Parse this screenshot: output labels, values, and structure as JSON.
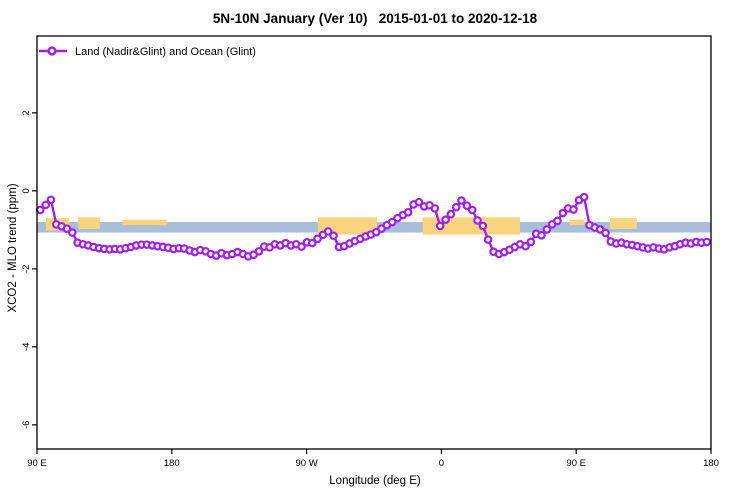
{
  "title": "5N-10N January (Ver 10)   2015-01-01 to 2020-12-18",
  "legend": {
    "label": "Land (Nadir&Glint) and Ocean (Glint)"
  },
  "colors": {
    "series_purple": "#A020F0",
    "ocean_band_blue": "#A9BEDB",
    "land_patch_orange": "#F9D37E",
    "axis_black": "#000000"
  },
  "chart_data": {
    "type": "line",
    "title": "5N-10N January (Ver 10)   2015-01-01 to 2020-12-18",
    "xlabel": "Longitude (deg E)",
    "ylabel": "XCO2 - MLO trend (ppm)",
    "xlim": [
      90,
      540
    ],
    "ylim": [
      -6.62,
      3.97
    ],
    "grid": false,
    "legend_position": "top-left",
    "x_ticks": [
      {
        "value": 90,
        "label": "90 E"
      },
      {
        "value": 180,
        "label": "180"
      },
      {
        "value": 270,
        "label": "90 W"
      },
      {
        "value": 360,
        "label": "0"
      },
      {
        "value": 450,
        "label": "90 E"
      },
      {
        "value": 540,
        "label": "180"
      }
    ],
    "y_ticks": [
      {
        "value": 2,
        "label": "2"
      },
      {
        "value": 0,
        "label": "0"
      },
      {
        "value": -2,
        "label": "-2"
      },
      {
        "value": -4,
        "label": "-4"
      },
      {
        "value": -6,
        "label": "-6"
      }
    ],
    "ocean_band": {
      "from_lon": 90,
      "to_lon": 540,
      "top": -0.8,
      "bottom": -1.07
    },
    "land_patches": [
      {
        "from_lon": 96.0,
        "to_lon": 111.5,
        "top": -0.7,
        "bottom": -1.02
      },
      {
        "from_lon": 117.5,
        "to_lon": 132.0,
        "top": -0.68,
        "bottom": -0.98
      },
      {
        "from_lon": 147.0,
        "to_lon": 177.0,
        "top": -0.74,
        "bottom": -0.88
      },
      {
        "from_lon": 277.5,
        "to_lon": 317.0,
        "top": -0.68,
        "bottom": -1.12
      },
      {
        "from_lon": 347.5,
        "to_lon": 412.5,
        "top": -0.68,
        "bottom": -1.12
      },
      {
        "from_lon": 445.5,
        "to_lon": 455.5,
        "top": -0.74,
        "bottom": -0.88
      },
      {
        "from_lon": 472.5,
        "to_lon": 490.5,
        "top": -0.7,
        "bottom": -0.98
      }
    ],
    "series": [
      {
        "name": "Land (Nadir&Glint) and Ocean (Glint)",
        "color": "#A020F0",
        "marker": "open-circle",
        "points": [
          [
            92.2,
            -0.49
          ],
          [
            95.8,
            -0.36
          ],
          [
            99.3,
            -0.23
          ],
          [
            102.9,
            -0.86
          ],
          [
            106.4,
            -0.91
          ],
          [
            110.0,
            -0.97
          ],
          [
            113.6,
            -1.07
          ],
          [
            117.1,
            -1.33
          ],
          [
            120.7,
            -1.37
          ],
          [
            124.2,
            -1.4
          ],
          [
            127.8,
            -1.44
          ],
          [
            131.4,
            -1.47
          ],
          [
            134.9,
            -1.49
          ],
          [
            138.5,
            -1.5
          ],
          [
            142.0,
            -1.49
          ],
          [
            145.6,
            -1.5
          ],
          [
            149.2,
            -1.47
          ],
          [
            152.7,
            -1.44
          ],
          [
            156.3,
            -1.4
          ],
          [
            159.8,
            -1.38
          ],
          [
            163.4,
            -1.38
          ],
          [
            167.0,
            -1.4
          ],
          [
            170.5,
            -1.42
          ],
          [
            174.1,
            -1.44
          ],
          [
            177.6,
            -1.46
          ],
          [
            181.2,
            -1.49
          ],
          [
            184.8,
            -1.47
          ],
          [
            188.3,
            -1.48
          ],
          [
            191.9,
            -1.53
          ],
          [
            195.4,
            -1.57
          ],
          [
            199.0,
            -1.52
          ],
          [
            202.6,
            -1.55
          ],
          [
            206.1,
            -1.62
          ],
          [
            209.7,
            -1.66
          ],
          [
            213.2,
            -1.6
          ],
          [
            216.8,
            -1.65
          ],
          [
            220.4,
            -1.62
          ],
          [
            223.9,
            -1.57
          ],
          [
            227.5,
            -1.62
          ],
          [
            231.0,
            -1.68
          ],
          [
            234.6,
            -1.64
          ],
          [
            238.2,
            -1.55
          ],
          [
            241.7,
            -1.43
          ],
          [
            245.3,
            -1.45
          ],
          [
            248.8,
            -1.37
          ],
          [
            252.4,
            -1.4
          ],
          [
            256.0,
            -1.34
          ],
          [
            259.5,
            -1.4
          ],
          [
            263.1,
            -1.37
          ],
          [
            266.6,
            -1.43
          ],
          [
            270.2,
            -1.32
          ],
          [
            273.8,
            -1.34
          ],
          [
            277.3,
            -1.23
          ],
          [
            280.9,
            -1.13
          ],
          [
            284.4,
            -1.04
          ],
          [
            288.0,
            -1.15
          ],
          [
            291.6,
            -1.44
          ],
          [
            295.1,
            -1.42
          ],
          [
            298.7,
            -1.35
          ],
          [
            302.2,
            -1.29
          ],
          [
            305.8,
            -1.23
          ],
          [
            309.4,
            -1.17
          ],
          [
            312.9,
            -1.12
          ],
          [
            316.5,
            -1.06
          ],
          [
            320.0,
            -0.97
          ],
          [
            323.6,
            -0.88
          ],
          [
            327.2,
            -0.8
          ],
          [
            330.7,
            -0.7
          ],
          [
            334.3,
            -0.62
          ],
          [
            337.8,
            -0.55
          ],
          [
            341.4,
            -0.35
          ],
          [
            345.0,
            -0.29
          ],
          [
            348.5,
            -0.4
          ],
          [
            352.1,
            -0.37
          ],
          [
            355.6,
            -0.45
          ],
          [
            359.2,
            -0.9
          ],
          [
            362.8,
            -0.74
          ],
          [
            366.3,
            -0.6
          ],
          [
            369.9,
            -0.42
          ],
          [
            373.4,
            -0.25
          ],
          [
            377.0,
            -0.38
          ],
          [
            380.6,
            -0.49
          ],
          [
            384.1,
            -0.76
          ],
          [
            387.7,
            -0.9
          ],
          [
            391.2,
            -1.25
          ],
          [
            394.8,
            -1.56
          ],
          [
            398.4,
            -1.62
          ],
          [
            401.9,
            -1.57
          ],
          [
            405.5,
            -1.51
          ],
          [
            409.0,
            -1.44
          ],
          [
            412.6,
            -1.37
          ],
          [
            416.2,
            -1.42
          ],
          [
            419.7,
            -1.31
          ],
          [
            423.3,
            -1.1
          ],
          [
            426.8,
            -1.14
          ],
          [
            430.4,
            -0.99
          ],
          [
            434.0,
            -0.86
          ],
          [
            437.5,
            -0.77
          ],
          [
            441.1,
            -0.57
          ],
          [
            444.6,
            -0.45
          ],
          [
            448.2,
            -0.48
          ],
          [
            451.8,
            -0.24
          ],
          [
            455.3,
            -0.16
          ],
          [
            458.9,
            -0.88
          ],
          [
            462.4,
            -0.94
          ],
          [
            466.0,
            -0.99
          ],
          [
            469.6,
            -1.08
          ],
          [
            473.1,
            -1.3
          ],
          [
            476.7,
            -1.35
          ],
          [
            480.2,
            -1.33
          ],
          [
            483.8,
            -1.37
          ],
          [
            487.4,
            -1.39
          ],
          [
            490.9,
            -1.42
          ],
          [
            494.5,
            -1.45
          ],
          [
            498.0,
            -1.48
          ],
          [
            501.6,
            -1.45
          ],
          [
            505.2,
            -1.48
          ],
          [
            508.7,
            -1.5
          ],
          [
            512.3,
            -1.45
          ],
          [
            515.8,
            -1.42
          ],
          [
            519.4,
            -1.37
          ],
          [
            523.0,
            -1.33
          ],
          [
            526.5,
            -1.35
          ],
          [
            530.1,
            -1.31
          ],
          [
            533.6,
            -1.33
          ],
          [
            537.2,
            -1.31
          ]
        ]
      }
    ]
  }
}
